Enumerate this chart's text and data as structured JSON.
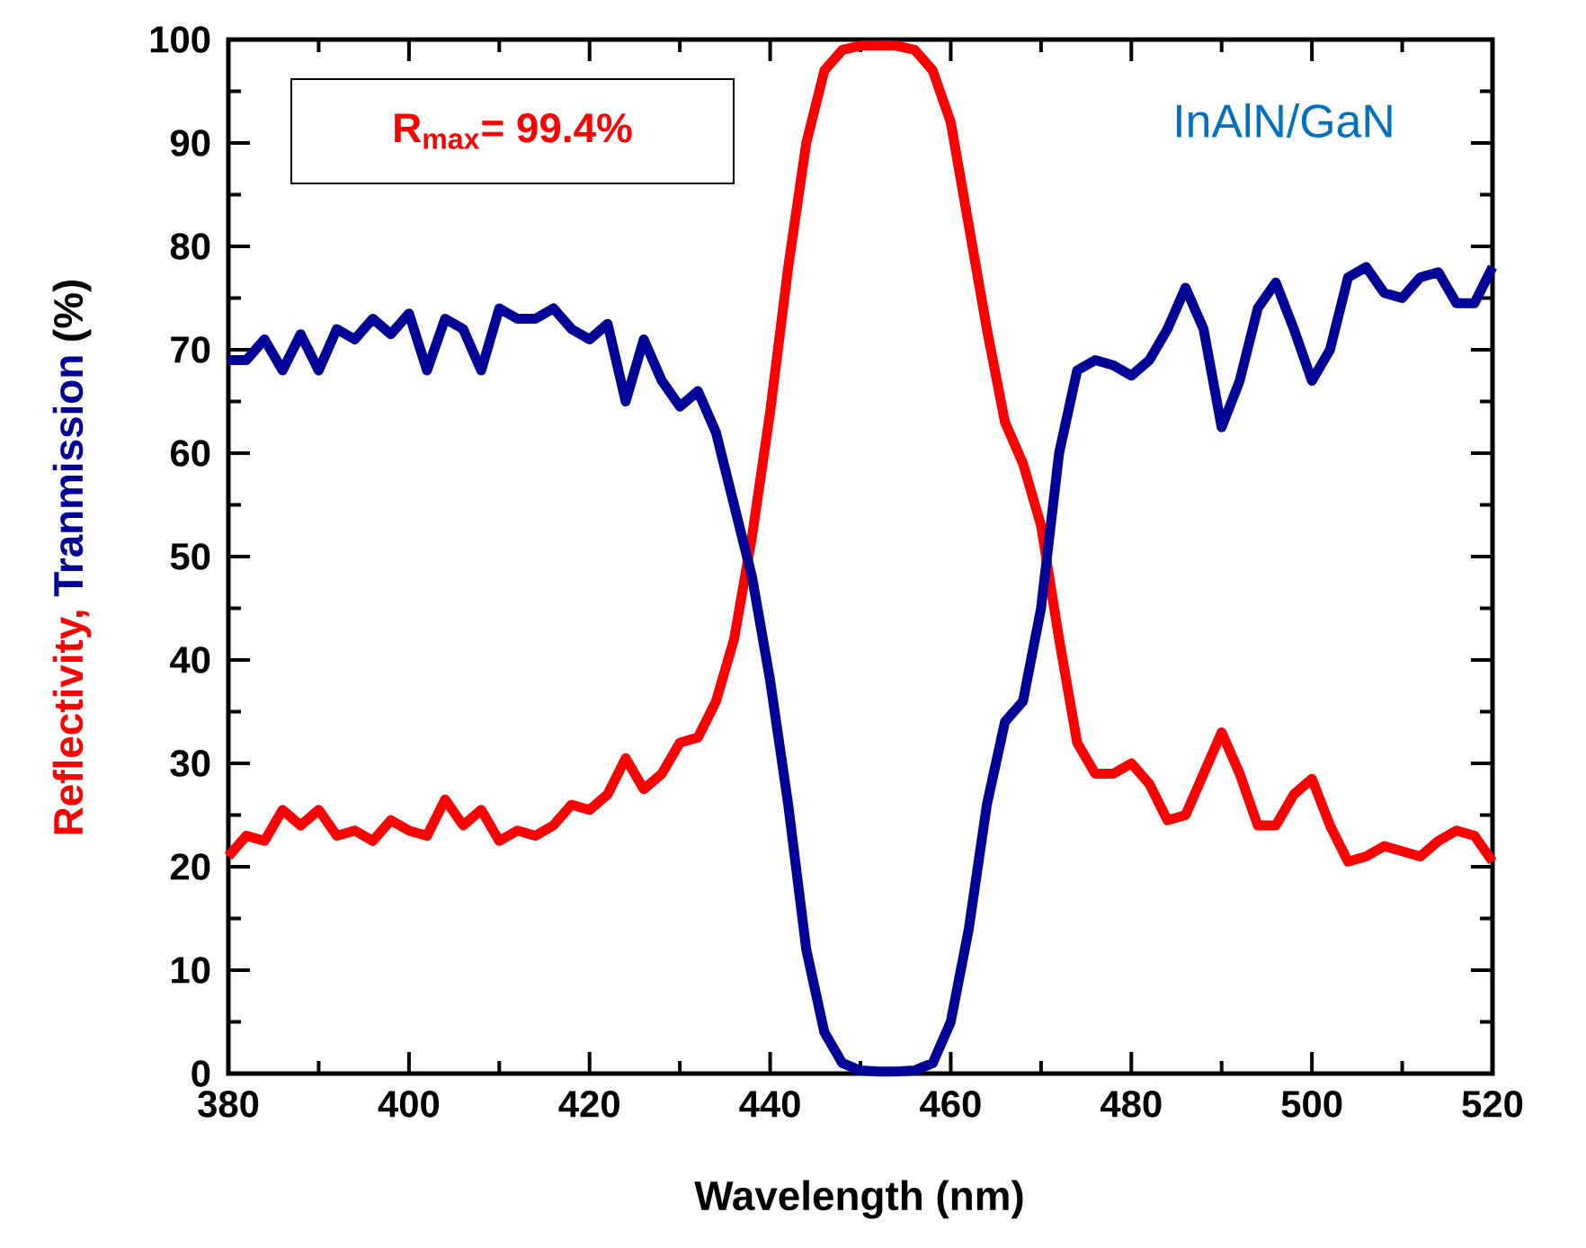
{
  "chart_data": {
    "type": "line",
    "xlabel": "Wavelength (nm)",
    "ylabel": "(%)",
    "x": [
      380,
      382,
      384,
      386,
      388,
      390,
      392,
      394,
      396,
      398,
      400,
      402,
      404,
      406,
      408,
      410,
      412,
      414,
      416,
      418,
      420,
      422,
      424,
      426,
      428,
      430,
      432,
      434,
      436,
      438,
      440,
      442,
      444,
      446,
      448,
      450,
      452,
      454,
      456,
      458,
      460,
      462,
      464,
      466,
      468,
      470,
      472,
      474,
      476,
      478,
      480,
      482,
      484,
      486,
      488,
      490,
      492,
      494,
      496,
      498,
      500,
      502,
      504,
      506,
      508,
      510,
      512,
      514,
      516,
      518,
      520
    ],
    "series": [
      {
        "name": "Reflectivity,",
        "color": "#ff0000",
        "values": [
          21,
          23,
          22.5,
          25.5,
          24,
          25.5,
          23,
          23.5,
          22.5,
          24.5,
          23.5,
          23,
          26.5,
          24,
          25.5,
          22.5,
          23.5,
          23,
          24,
          26,
          25.5,
          27,
          30.5,
          27.5,
          29,
          32,
          32.5,
          36,
          42,
          52,
          64,
          78,
          90,
          97,
          99,
          99.4,
          99.4,
          99.4,
          99,
          97,
          92,
          82,
          72,
          63,
          59,
          53,
          42,
          32,
          29,
          29,
          30,
          28,
          24.5,
          25,
          29,
          33,
          29,
          24,
          24,
          27,
          28.5,
          24,
          20.5,
          21,
          22,
          21.5,
          21,
          22.5,
          23.5,
          23,
          20.5
        ]
      },
      {
        "name": "Tranmission",
        "color": "#000099",
        "values": [
          69,
          69,
          71,
          68,
          71.5,
          68,
          72,
          71,
          73,
          71.5,
          73.5,
          68,
          73,
          72,
          68,
          74,
          73,
          73,
          74,
          72,
          71,
          72.5,
          65,
          71,
          67,
          64.5,
          66,
          62,
          55,
          48,
          38,
          26,
          12,
          4,
          1,
          0.3,
          0.2,
          0.2,
          0.3,
          1,
          5,
          14,
          26,
          34,
          36,
          45,
          60,
          68,
          69,
          68.5,
          67.5,
          69,
          72,
          76,
          72,
          62.5,
          67,
          74,
          76.5,
          72,
          67,
          70,
          77,
          78,
          75.5,
          75,
          77,
          77.5,
          74.5,
          74.5,
          78
        ]
      }
    ],
    "xlim": [
      380,
      520
    ],
    "ylim": [
      0,
      100
    ],
    "xticks": [
      380,
      400,
      420,
      440,
      460,
      480,
      500,
      520
    ],
    "yticks": [
      0,
      10,
      20,
      30,
      40,
      50,
      60,
      70,
      80,
      90,
      100
    ],
    "annotations": [
      "R$_{max}$= 99.4%",
      "InAlN/GaN"
    ],
    "grid": false,
    "legend": false,
    "marker": "none",
    "line_style": "solid"
  }
}
